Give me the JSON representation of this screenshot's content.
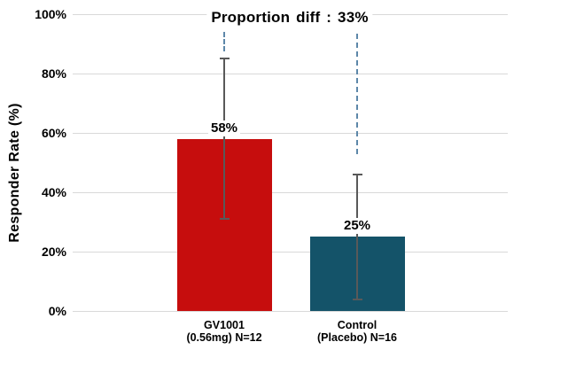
{
  "chart_data": {
    "type": "bar",
    "title": "Proportion diff : 33%",
    "ylabel": "Responder Rate (%)",
    "xlabel": "",
    "ylim": [
      0,
      100
    ],
    "grid": true,
    "legend": false,
    "yticks": [
      {
        "value": 0,
        "label": "0%"
      },
      {
        "value": 20,
        "label": "20%"
      },
      {
        "value": 40,
        "label": "40%"
      },
      {
        "value": 60,
        "label": "60%"
      },
      {
        "value": 80,
        "label": "80%"
      },
      {
        "value": 100,
        "label": "100%"
      }
    ],
    "bars": [
      {
        "category_line1": "GV1001",
        "category_line2": "(0.56mg) N=12",
        "value": 58,
        "value_label": "58%",
        "color": "#c60d0d",
        "error_low": 31,
        "error_high": 85
      },
      {
        "category_line1": "Control",
        "category_line2": "(Placebo) N=16",
        "value": 25,
        "value_label": "25%",
        "color": "#145369",
        "error_low": 4,
        "error_high": 46
      }
    ],
    "annotation": {
      "connector_style": "dashed",
      "connector_color": "#5d87a9"
    },
    "colors": {
      "gridline": "#d9d9d9",
      "error_bar": "#595959",
      "text": "#000000",
      "background": "#ffffff"
    }
  }
}
